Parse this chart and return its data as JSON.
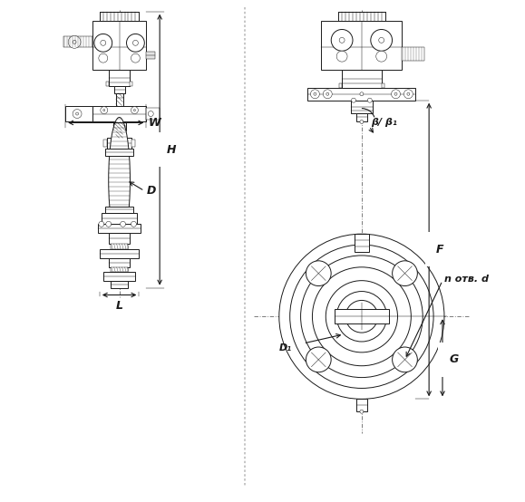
{
  "bg_color": "#ffffff",
  "line_color": "#1a1a1a",
  "lw": 0.7,
  "tlw": 0.35,
  "fig_width": 5.79,
  "fig_height": 5.54,
  "dpi": 100,
  "labels": {
    "H": "H",
    "W": "W",
    "D": "D",
    "L": "L",
    "F": "F",
    "G": "G",
    "D1": "D₁",
    "beta": "β/ β₁",
    "n_holes": "n отв. d"
  }
}
